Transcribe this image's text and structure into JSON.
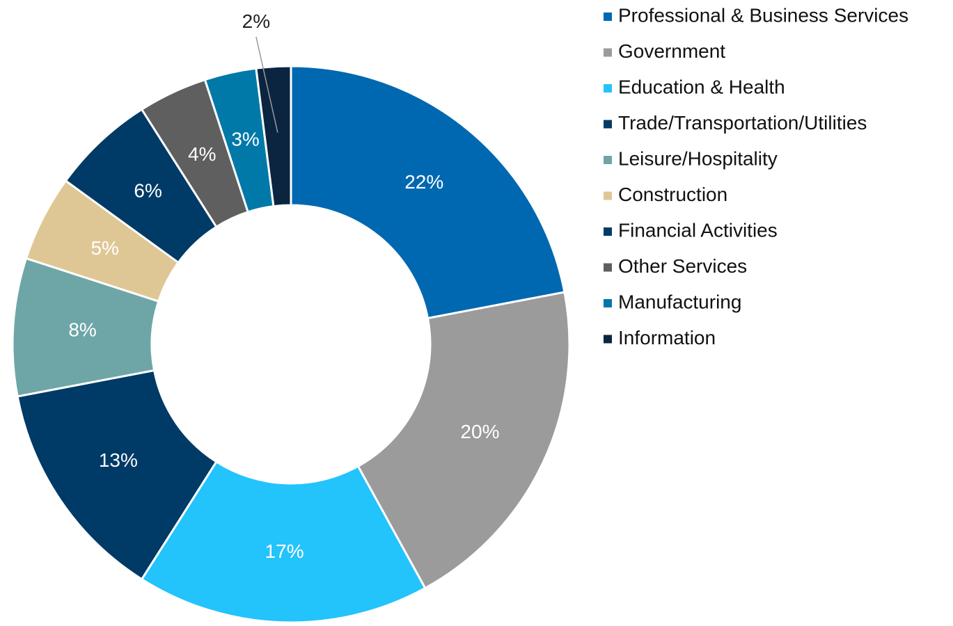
{
  "chart_data": {
    "type": "donut",
    "categories": [
      "Professional & Business Services",
      "Government",
      "Education & Health",
      "Trade/Transportation/Utilities",
      "Leisure/Hospitality",
      "Construction",
      "Financial Activities",
      "Other Services",
      "Manufacturing",
      "Information"
    ],
    "values": [
      22,
      20,
      17,
      13,
      8,
      5,
      6,
      4,
      3,
      2
    ],
    "value_labels": [
      "22%",
      "20%",
      "17%",
      "13%",
      "8%",
      "5%",
      "6%",
      "4%",
      "3%",
      "2%"
    ],
    "colors": [
      "#0068b1",
      "#9b9b9b",
      "#23c3fc",
      "#003a66",
      "#6ea6a8",
      "#dfc795",
      "#003a66",
      "#5f5f5f",
      "#0079a8",
      "#0b2540"
    ],
    "legend": "right"
  }
}
